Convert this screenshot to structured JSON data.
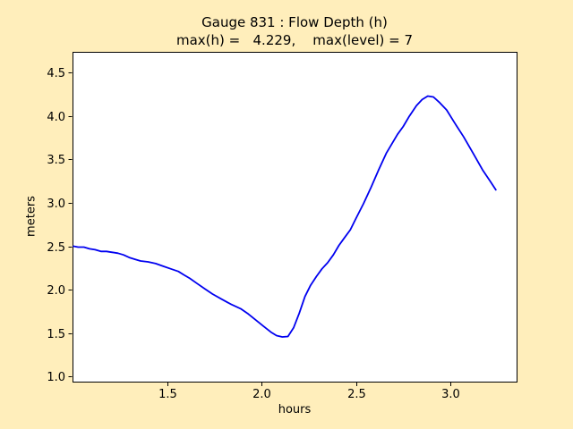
{
  "figure": {
    "background_color": "#FFEEBB",
    "axes_background_color": "#FFFFFF",
    "frame_color": "#000000"
  },
  "chart_data": {
    "type": "line",
    "title": "Gauge 831 : Flow Depth (h)",
    "subtitle": "max(h) =   4.229,    max(level) = 7",
    "xlabel": "hours",
    "ylabel": "meters",
    "xlim": [
      1.0,
      3.35
    ],
    "ylim": [
      0.94,
      4.74
    ],
    "xticks": [
      1.5,
      2.0,
      2.5,
      3.0
    ],
    "xtick_labels": [
      "1.5",
      "2.0",
      "2.5",
      "3.0"
    ],
    "yticks": [
      1.0,
      1.5,
      2.0,
      2.5,
      3.0,
      3.5,
      4.0,
      4.5
    ],
    "ytick_labels": [
      "1.0",
      "1.5",
      "2.0",
      "2.5",
      "3.0",
      "3.5",
      "4.0",
      "4.5"
    ],
    "grid": false,
    "legend": null,
    "max_h": 4.229,
    "max_level": 7,
    "series": [
      {
        "name": "flow-depth-h",
        "color": "#0000F0",
        "points": [
          [
            1.005,
            2.5
          ],
          [
            1.03,
            2.49
          ],
          [
            1.06,
            2.49
          ],
          [
            1.09,
            2.47
          ],
          [
            1.12,
            2.46
          ],
          [
            1.15,
            2.44
          ],
          [
            1.18,
            2.44
          ],
          [
            1.21,
            2.43
          ],
          [
            1.24,
            2.42
          ],
          [
            1.27,
            2.4
          ],
          [
            1.3,
            2.37
          ],
          [
            1.33,
            2.35
          ],
          [
            1.36,
            2.33
          ],
          [
            1.4,
            2.32
          ],
          [
            1.44,
            2.3
          ],
          [
            1.48,
            2.27
          ],
          [
            1.52,
            2.24
          ],
          [
            1.56,
            2.21
          ],
          [
            1.59,
            2.17
          ],
          [
            1.62,
            2.13
          ],
          [
            1.66,
            2.07
          ],
          [
            1.7,
            2.01
          ],
          [
            1.74,
            1.95
          ],
          [
            1.79,
            1.89
          ],
          [
            1.84,
            1.83
          ],
          [
            1.89,
            1.78
          ],
          [
            1.93,
            1.72
          ],
          [
            1.97,
            1.65
          ],
          [
            2.01,
            1.58
          ],
          [
            2.05,
            1.51
          ],
          [
            2.08,
            1.47
          ],
          [
            2.11,
            1.455
          ],
          [
            2.14,
            1.46
          ],
          [
            2.17,
            1.56
          ],
          [
            2.2,
            1.73
          ],
          [
            2.23,
            1.92
          ],
          [
            2.26,
            2.05
          ],
          [
            2.29,
            2.15
          ],
          [
            2.32,
            2.24
          ],
          [
            2.35,
            2.31
          ],
          [
            2.38,
            2.4
          ],
          [
            2.41,
            2.51
          ],
          [
            2.44,
            2.6
          ],
          [
            2.47,
            2.69
          ],
          [
            2.5,
            2.82
          ],
          [
            2.54,
            2.99
          ],
          [
            2.58,
            3.18
          ],
          [
            2.62,
            3.38
          ],
          [
            2.66,
            3.57
          ],
          [
            2.69,
            3.68
          ],
          [
            2.72,
            3.79
          ],
          [
            2.75,
            3.88
          ],
          [
            2.78,
            3.99
          ],
          [
            2.82,
            4.12
          ],
          [
            2.85,
            4.19
          ],
          [
            2.88,
            4.23
          ],
          [
            2.91,
            4.22
          ],
          [
            2.94,
            4.16
          ],
          [
            2.98,
            4.07
          ],
          [
            3.02,
            3.93
          ],
          [
            3.07,
            3.76
          ],
          [
            3.12,
            3.57
          ],
          [
            3.17,
            3.38
          ],
          [
            3.21,
            3.25
          ],
          [
            3.24,
            3.15
          ]
        ]
      }
    ]
  }
}
